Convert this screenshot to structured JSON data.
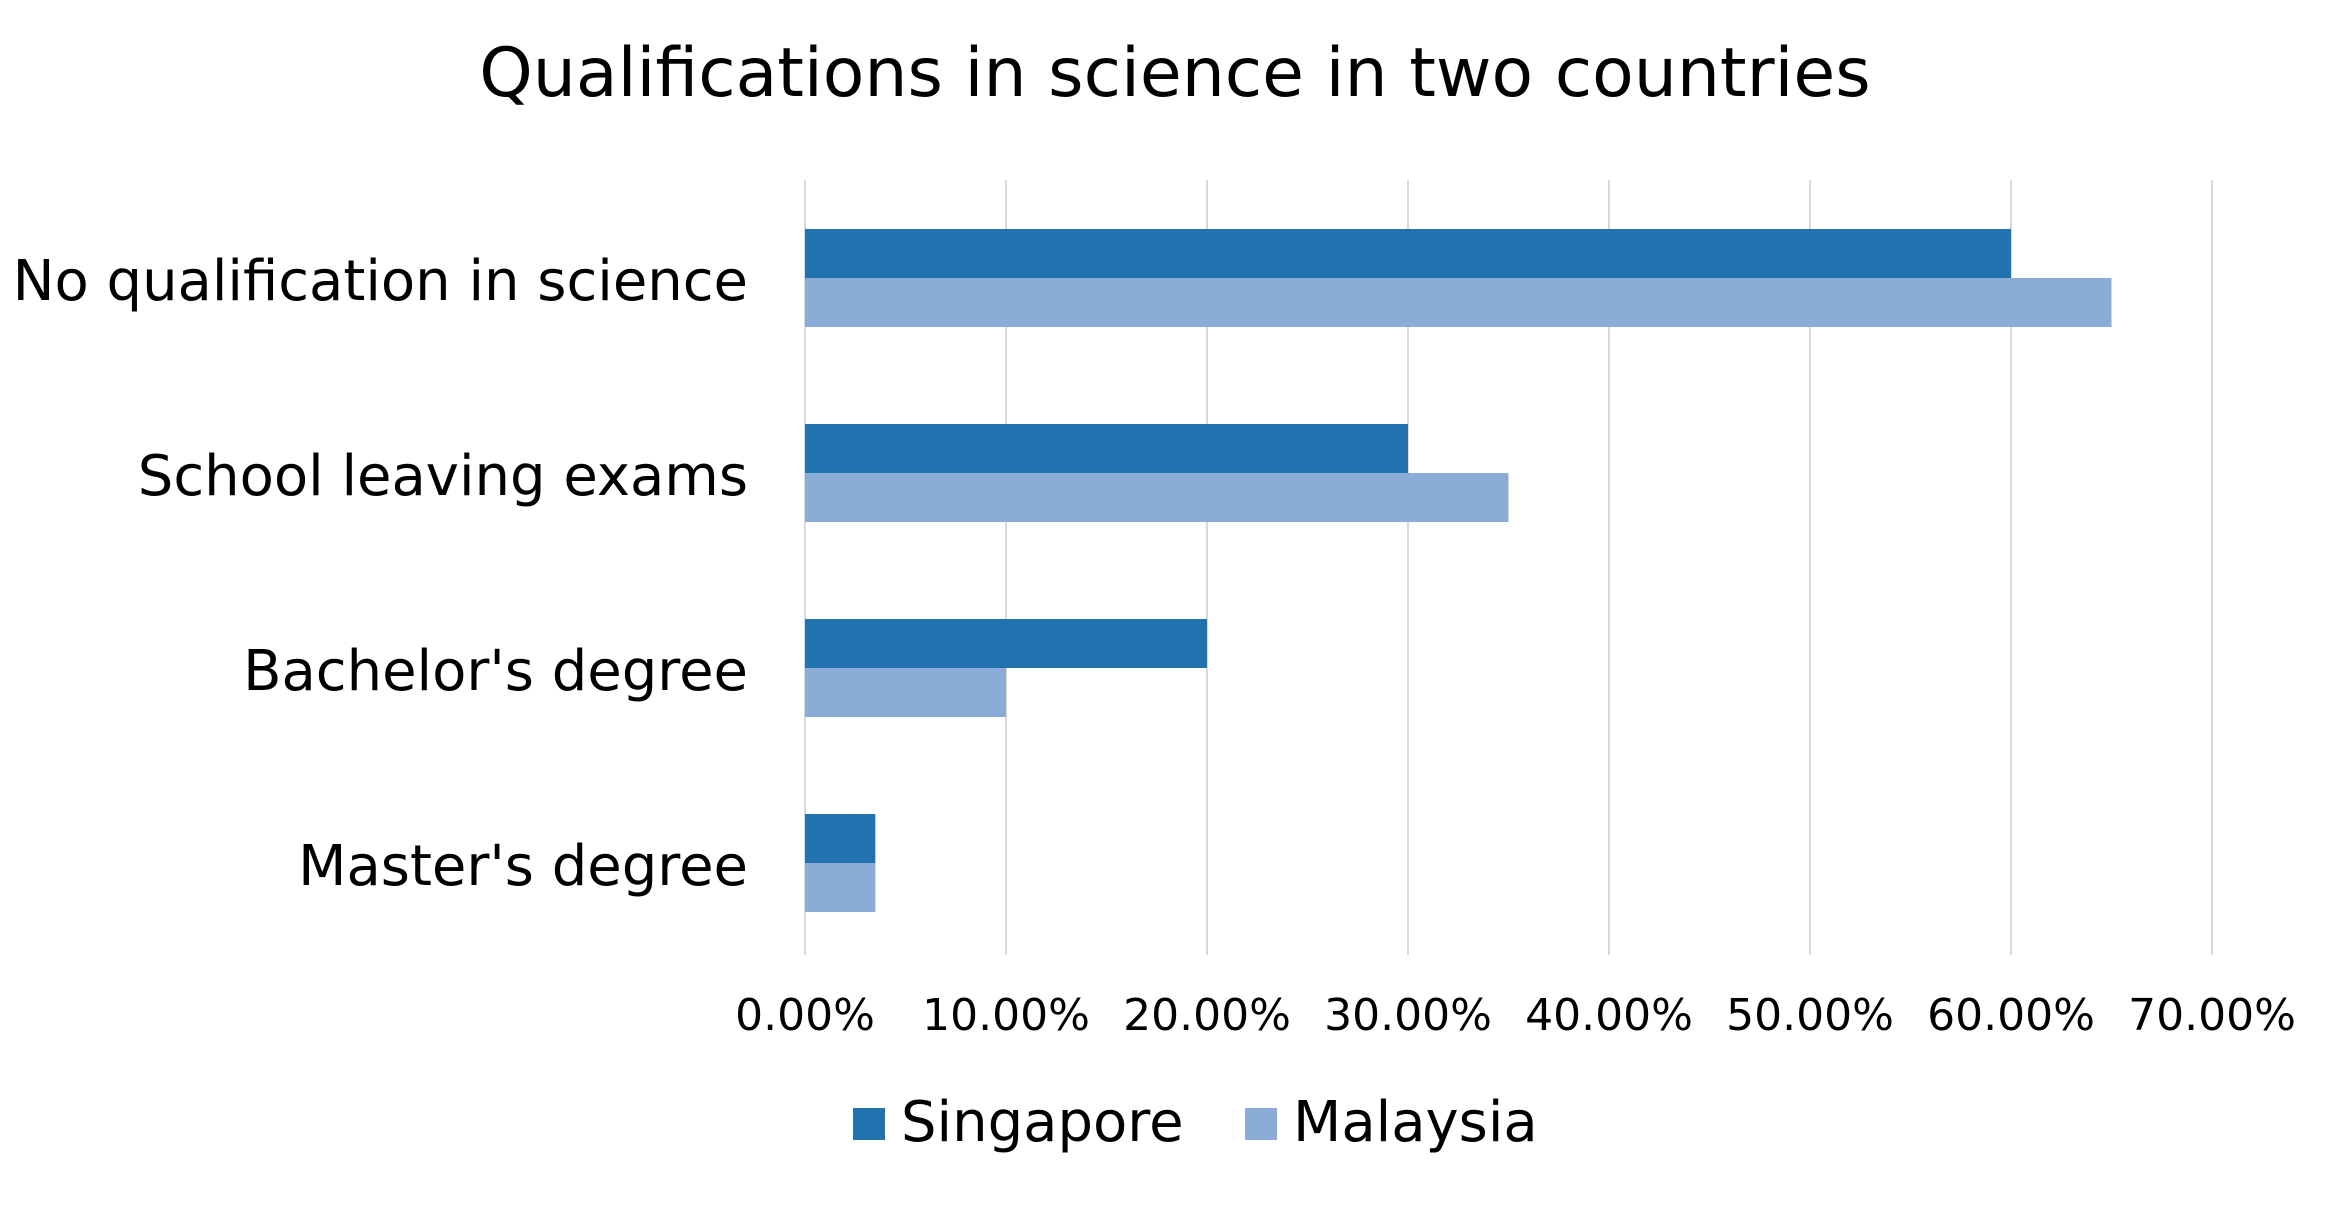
{
  "chart_data": {
    "type": "bar",
    "orientation": "horizontal",
    "title": "Qualifications in science in two countries",
    "xlabel": "",
    "ylabel": "",
    "categories": [
      "No qualification in science",
      "School leaving exams",
      "Bachelor's degree",
      "Master's degree"
    ],
    "series": [
      {
        "name": "Singapore",
        "color": "#2372b0",
        "values": [
          0.6,
          0.3,
          0.2,
          0.035
        ]
      },
      {
        "name": "Malaysia",
        "color": "#8aacd7",
        "values": [
          0.65,
          0.35,
          0.1,
          0.035
        ]
      }
    ],
    "xlim": [
      0,
      0.7
    ],
    "x_ticks": [
      0,
      0.1,
      0.2,
      0.3,
      0.4,
      0.5,
      0.6,
      0.7
    ],
    "x_tick_labels": [
      "0.00%",
      "10.00%",
      "20.00%",
      "30.00%",
      "40.00%",
      "50.00%",
      "60.00%",
      "70.00%"
    ],
    "grid": "vertical",
    "gridline_color": "#d9d9d9",
    "legend_position": "bottom"
  }
}
